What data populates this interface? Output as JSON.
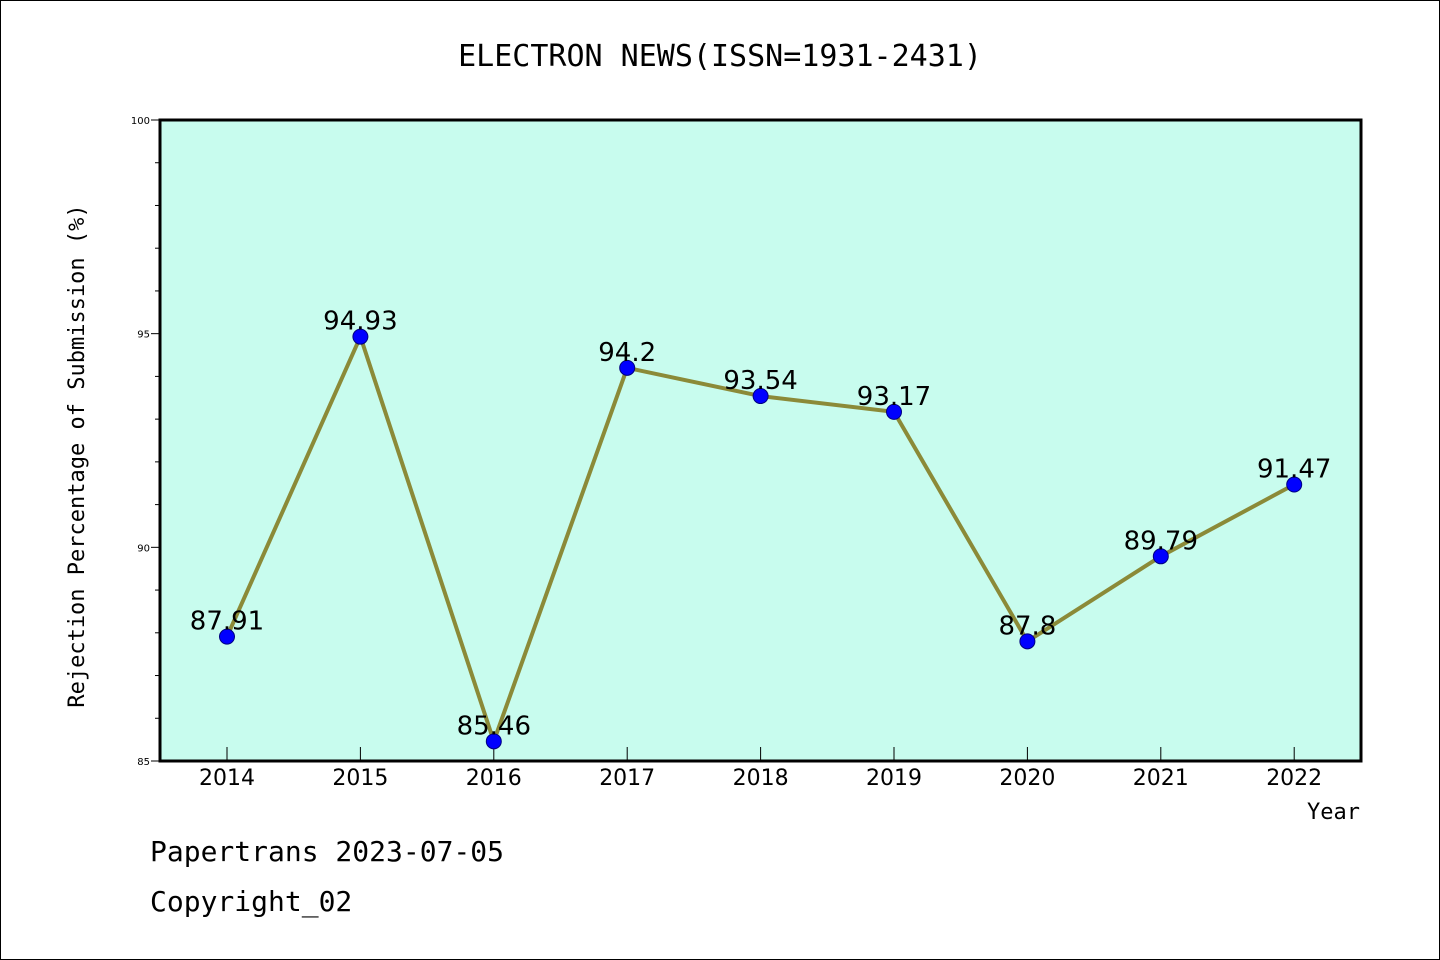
{
  "chart_data": {
    "type": "line",
    "title": "ELECTRON NEWS(ISSN=1931-2431)",
    "xlabel": "Year",
    "ylabel": "Rejection Percentage of Submission (%)",
    "categories": [
      "2014",
      "2015",
      "2016",
      "2017",
      "2018",
      "2019",
      "2020",
      "2021",
      "2022"
    ],
    "values": [
      87.91,
      94.93,
      85.46,
      94.2,
      93.54,
      93.17,
      87.8,
      89.79,
      91.47
    ],
    "data_labels": [
      "87.91",
      "94.93",
      "85.46",
      "94.2",
      "93.54",
      "93.17",
      "87.8",
      "89.79",
      "91.47"
    ],
    "ylim": [
      85,
      100
    ],
    "yticks": [
      85,
      90,
      95,
      100
    ],
    "ytick_labels": [
      "85",
      "90",
      "95",
      "100"
    ],
    "y_minor_step": 1,
    "grid": false,
    "colors": {
      "plot_background": "#c8fcee",
      "line": "#8b8a38",
      "marker": "#0000ff",
      "marker_edge": "#000080"
    }
  },
  "footer": {
    "line1": "Papertrans 2023-07-05",
    "line2": "Copyright_02"
  }
}
